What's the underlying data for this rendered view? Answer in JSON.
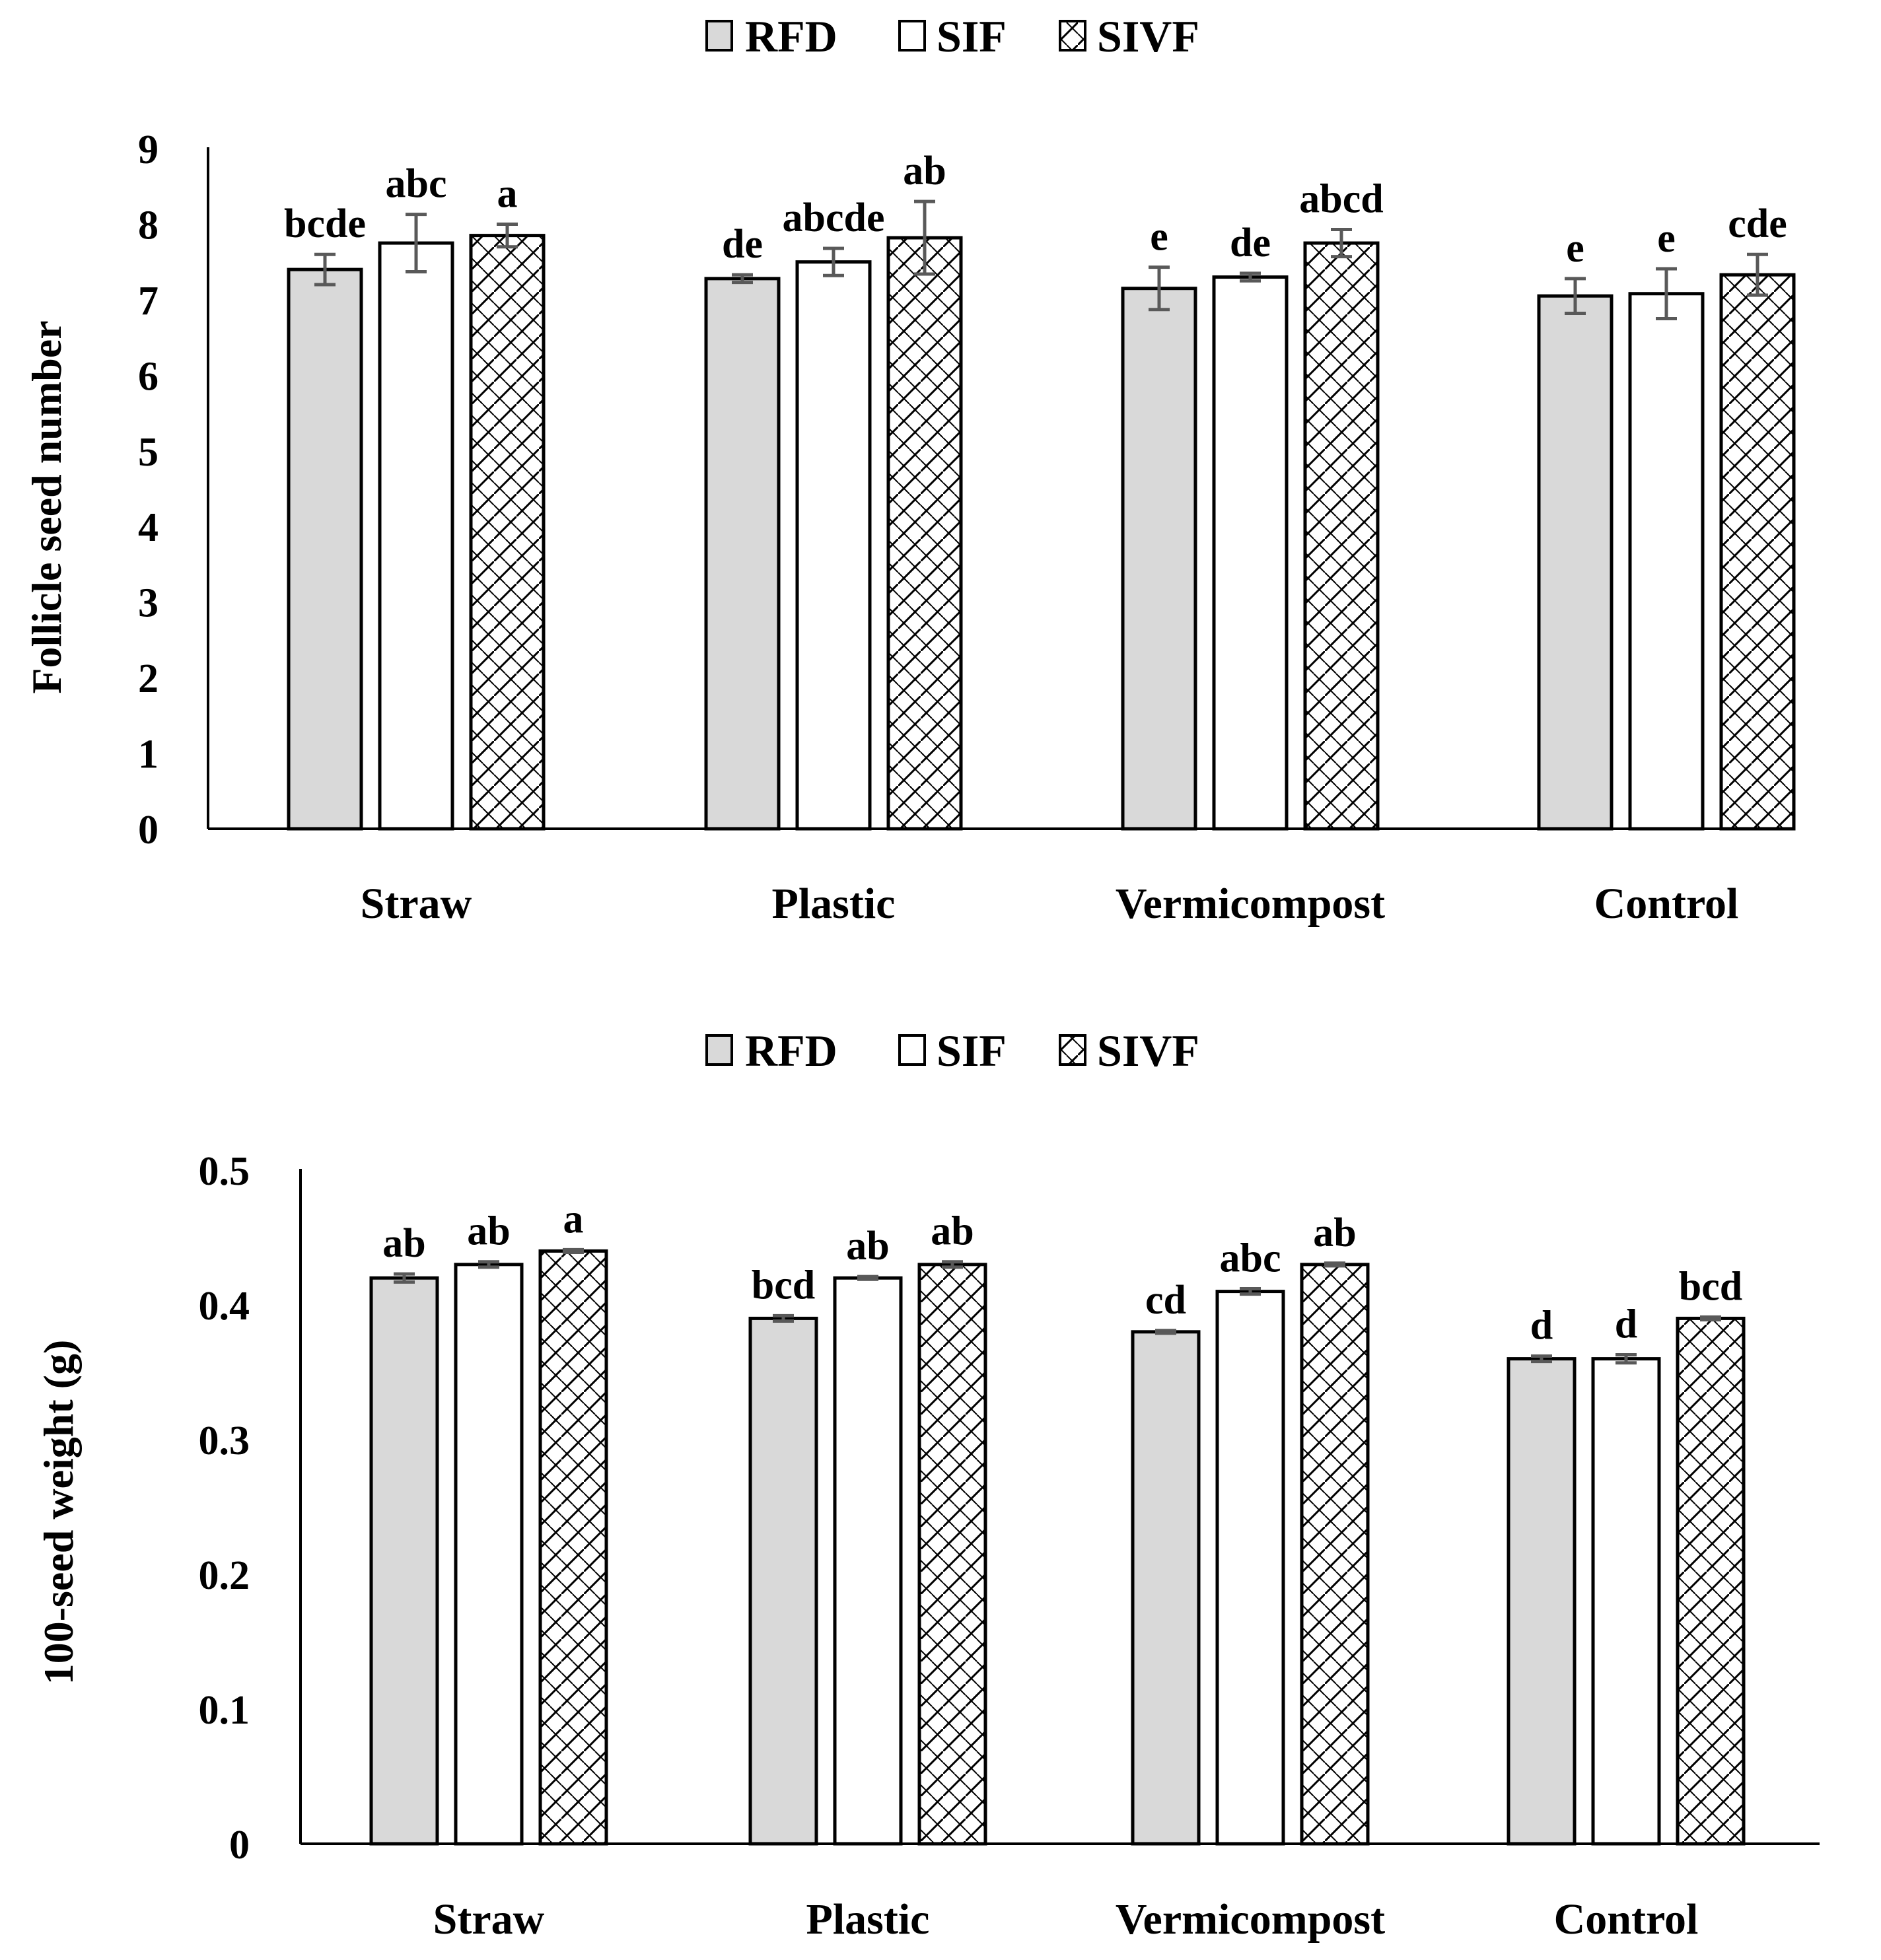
{
  "colors": {
    "RFD": "#d9d9d9",
    "SIF": "#ffffff",
    "SIVF": "hatch",
    "outline": "#000000",
    "error_bar": "#595959"
  },
  "chart_data": [
    {
      "type": "bar",
      "title": "",
      "xlabel": "",
      "ylabel": "Follicle seed number",
      "ylim": [
        0,
        9
      ],
      "yticks": [
        "0",
        "1",
        "2",
        "3",
        "4",
        "5",
        "6",
        "7",
        "8",
        "9"
      ],
      "categories": [
        "Straw",
        "Plastic",
        "Vermicompost",
        "Control"
      ],
      "legend": [
        "RFD",
        "SIF",
        "SIVF"
      ],
      "legend_position": "top-center",
      "series": [
        {
          "name": "RFD",
          "values": [
            7.4,
            7.28,
            7.15,
            7.05
          ],
          "errors": [
            0.2,
            0.05,
            0.28,
            0.23
          ],
          "letters": [
            "bcde",
            "de",
            "e",
            "e"
          ]
        },
        {
          "name": "SIF",
          "values": [
            7.75,
            7.5,
            7.3,
            7.08
          ],
          "errors": [
            0.38,
            0.18,
            0.05,
            0.33
          ],
          "letters": [
            "abc",
            "abcde",
            "de",
            "e"
          ]
        },
        {
          "name": "SIVF",
          "values": [
            7.85,
            7.82,
            7.75,
            7.33
          ],
          "errors": [
            0.15,
            0.48,
            0.18,
            0.27
          ],
          "letters": [
            "a",
            "ab",
            "abcd",
            "cde"
          ]
        }
      ]
    },
    {
      "type": "bar",
      "title": "",
      "xlabel": "",
      "ylabel": "100-seed weight (g)",
      "ylim": [
        0,
        0.5
      ],
      "yticks": [
        "0",
        "0.1",
        "0.2",
        "0.3",
        "0.4",
        "0.5"
      ],
      "categories": [
        "Straw",
        "Plastic",
        "Vermicompost",
        "Control"
      ],
      "legend": [
        "RFD",
        "SIF",
        "SIVF"
      ],
      "legend_position": "top-center",
      "series": [
        {
          "name": "RFD",
          "values": [
            0.42,
            0.39,
            0.38,
            0.36
          ],
          "errors": [
            0.003,
            0.002,
            0.001,
            0.002
          ],
          "letters": [
            "ab",
            "bcd",
            "cd",
            "d"
          ]
        },
        {
          "name": "SIF",
          "values": [
            0.43,
            0.42,
            0.41,
            0.36
          ],
          "errors": [
            0.002,
            0.001,
            0.002,
            0.003
          ],
          "letters": [
            "ab",
            "ab",
            "abc",
            "d"
          ]
        },
        {
          "name": "SIVF",
          "values": [
            0.44,
            0.43,
            0.43,
            0.39
          ],
          "errors": [
            0.001,
            0.002,
            0.001,
            0.001
          ],
          "letters": [
            "a",
            "ab",
            "ab",
            "bcd"
          ]
        }
      ]
    }
  ]
}
